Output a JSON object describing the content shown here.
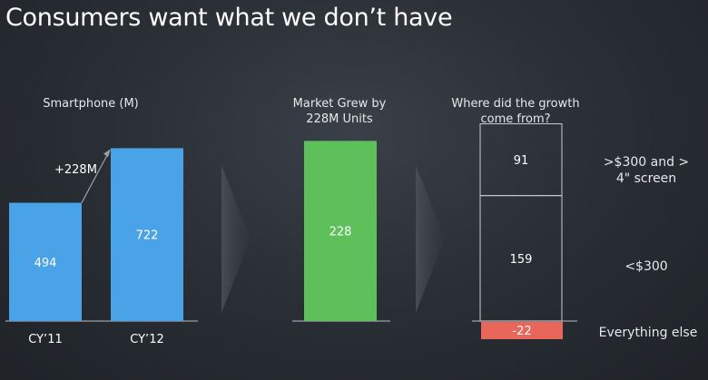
{
  "title": "Consumers want what we don’t have",
  "chart_data": [
    {
      "type": "bar",
      "title": "Smartphone (M)",
      "categories": [
        "CY’11",
        "CY’12"
      ],
      "values": [
        494,
        722
      ],
      "annotation": "+228M",
      "color": "#4aa3e6"
    },
    {
      "type": "bar",
      "title": "Market Grew by 228M Units",
      "values": [
        228
      ],
      "color": "#5dc05a"
    },
    {
      "type": "bar",
      "title": "Where did the growth come from?",
      "segments": [
        {
          "label": "Everything else",
          "value": -22,
          "color": "#e8665a"
        },
        {
          "label": "<$300",
          "value": 159
        },
        {
          "label": ">$300 and > 4\" screen",
          "value": 91
        }
      ]
    }
  ]
}
